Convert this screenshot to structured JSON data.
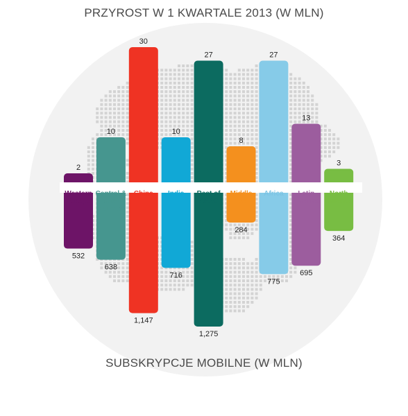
{
  "chart_data": {
    "type": "bar",
    "title": "PRZYROST W 1 KWARTALE 2013 (W MLN)",
    "subtitle": "SUBSKRYPCJE MOBILNE (W MLN)",
    "categories": [
      "Western\nEurope",
      "Central &\nEastern\nEurope",
      "China",
      "India",
      "Rest of\nAPAC",
      "Middle\nEast",
      "Africa",
      "Latin\nAmerica",
      "North\nAmerica"
    ],
    "series": [
      {
        "name": "PRZYROST W 1 KWARTALE 2013 (W MLN)",
        "values": [
          2,
          10,
          30,
          10,
          27,
          8,
          27,
          13,
          3
        ],
        "value_labels": [
          "2",
          "10",
          "30",
          "10",
          "27",
          "8",
          "27",
          "13",
          "3"
        ]
      },
      {
        "name": "SUBSKRYPCJE MOBILNE (W MLN)",
        "values": [
          532,
          638,
          1147,
          716,
          1275,
          284,
          775,
          695,
          364
        ],
        "value_labels": [
          "532",
          "638",
          "1,147",
          "716",
          "1,275",
          "284",
          "775",
          "695",
          "364"
        ]
      }
    ],
    "colors": [
      "#6d1467",
      "#46968f",
      "#ef3323",
      "#11a8d6",
      "#0c6b60",
      "#f4901e",
      "#86cbe8",
      "#9c5d9e",
      "#78bd43"
    ],
    "label_colors": [
      "#6d1467",
      "#46968f",
      "#ef3323",
      "#11a8d6",
      "#0c6b60",
      "#f4901e",
      "#7cc4e4",
      "#9c5d9e",
      "#78bd43"
    ],
    "upper_ylim": [
      0,
      30
    ],
    "lower_ylim": [
      0,
      1275
    ],
    "background": "dotted-globe"
  }
}
